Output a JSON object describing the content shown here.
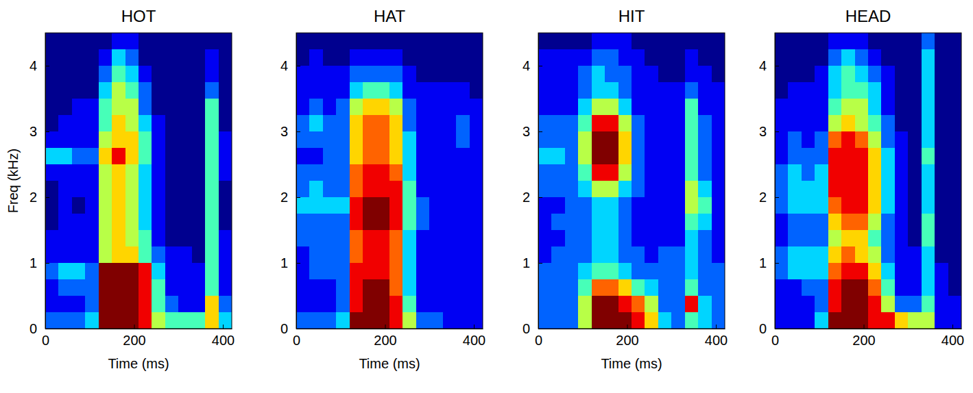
{
  "chart_data": [
    {
      "type": "heatmap",
      "title": "HOT",
      "x_label": "Time (ms)",
      "y_label": "Freq (kHz)",
      "x": [
        15,
        45,
        75,
        105,
        135,
        165,
        195,
        225,
        255,
        285,
        315,
        345,
        375,
        405
      ],
      "y": [
        0.125,
        0.375,
        0.625,
        0.875,
        1.125,
        1.375,
        1.625,
        1.875,
        2.125,
        2.375,
        2.625,
        2.875,
        3.125,
        3.375,
        3.625,
        3.875,
        4.125,
        4.375
      ],
      "z": [
        [
          2,
          2,
          2,
          3,
          9,
          9,
          9,
          8,
          5,
          4,
          4,
          4,
          6,
          3
        ],
        [
          1,
          1,
          1,
          2,
          9,
          9,
          9,
          8,
          4,
          2,
          1,
          1,
          6,
          2
        ],
        [
          1,
          2,
          2,
          2,
          9,
          9,
          9,
          8,
          4,
          1,
          1,
          1,
          4,
          1
        ],
        [
          2,
          3,
          3,
          2,
          9,
          9,
          9,
          8,
          3,
          1,
          1,
          1,
          4,
          1
        ],
        [
          1,
          1,
          1,
          1,
          5,
          6,
          6,
          4,
          2,
          1,
          1,
          0,
          4,
          1
        ],
        [
          1,
          1,
          1,
          1,
          5,
          6,
          5,
          4,
          1,
          0,
          0,
          0,
          4,
          1
        ],
        [
          0,
          1,
          1,
          1,
          5,
          6,
          5,
          3,
          1,
          0,
          0,
          0,
          4,
          0
        ],
        [
          0,
          1,
          0,
          1,
          5,
          6,
          5,
          3,
          1,
          0,
          0,
          0,
          4,
          0
        ],
        [
          0,
          1,
          1,
          1,
          5,
          6,
          5,
          3,
          1,
          0,
          0,
          0,
          4,
          0
        ],
        [
          1,
          1,
          1,
          1,
          5,
          6,
          5,
          3,
          1,
          0,
          0,
          0,
          4,
          1
        ],
        [
          3,
          3,
          2,
          2,
          6,
          8,
          6,
          4,
          1,
          0,
          0,
          0,
          4,
          1
        ],
        [
          1,
          1,
          1,
          1,
          5,
          6,
          6,
          4,
          1,
          0,
          0,
          0,
          4,
          1
        ],
        [
          0,
          1,
          1,
          1,
          4,
          6,
          5,
          3,
          1,
          0,
          0,
          0,
          4,
          0
        ],
        [
          0,
          0,
          1,
          1,
          4,
          5,
          5,
          2,
          0,
          0,
          0,
          0,
          4,
          0
        ],
        [
          0,
          0,
          0,
          0,
          3,
          5,
          4,
          2,
          0,
          0,
          0,
          0,
          2,
          0
        ],
        [
          0,
          0,
          0,
          0,
          2,
          4,
          3,
          1,
          0,
          0,
          0,
          0,
          1,
          0
        ],
        [
          0,
          0,
          0,
          0,
          1,
          3,
          2,
          0,
          0,
          0,
          0,
          0,
          1,
          0
        ],
        [
          0,
          0,
          0,
          0,
          0,
          1,
          1,
          0,
          0,
          0,
          0,
          0,
          0,
          0
        ]
      ],
      "zlim": [
        0,
        9
      ],
      "xlim": [
        0,
        420
      ],
      "xticks": [
        0,
        200,
        400
      ],
      "ylim": [
        0,
        4.5
      ],
      "yticks": [
        0,
        1,
        2,
        3,
        4
      ]
    },
    {
      "type": "heatmap",
      "title": "HAT",
      "x_label": "Time (ms)",
      "x": [
        15,
        45,
        75,
        105,
        135,
        165,
        195,
        225,
        255,
        285,
        315,
        345,
        375,
        405
      ],
      "y": [
        0.125,
        0.375,
        0.625,
        0.875,
        1.125,
        1.375,
        1.625,
        1.875,
        2.125,
        2.375,
        2.625,
        2.875,
        3.125,
        3.375,
        3.625,
        3.875,
        4.125,
        4.375
      ],
      "z": [
        [
          2,
          2,
          2,
          3,
          9,
          9,
          9,
          8,
          5,
          2,
          2,
          1,
          1,
          1
        ],
        [
          1,
          1,
          1,
          2,
          8,
          9,
          9,
          8,
          4,
          1,
          1,
          1,
          1,
          1
        ],
        [
          1,
          1,
          1,
          2,
          8,
          9,
          9,
          7,
          3,
          1,
          1,
          1,
          1,
          1
        ],
        [
          1,
          2,
          2,
          2,
          8,
          8,
          8,
          7,
          3,
          1,
          1,
          1,
          1,
          1
        ],
        [
          1,
          2,
          2,
          2,
          7,
          8,
          8,
          7,
          3,
          1,
          1,
          1,
          1,
          1
        ],
        [
          2,
          2,
          2,
          2,
          7,
          8,
          8,
          7,
          3,
          1,
          1,
          1,
          1,
          1
        ],
        [
          2,
          2,
          2,
          2,
          8,
          9,
          9,
          8,
          4,
          2,
          1,
          1,
          1,
          1
        ],
        [
          3,
          3,
          3,
          3,
          8,
          9,
          9,
          8,
          4,
          2,
          1,
          1,
          1,
          1
        ],
        [
          2,
          3,
          2,
          2,
          7,
          8,
          8,
          8,
          4,
          1,
          1,
          1,
          1,
          1
        ],
        [
          2,
          2,
          2,
          2,
          7,
          8,
          8,
          7,
          3,
          1,
          1,
          1,
          1,
          1
        ],
        [
          1,
          1,
          2,
          2,
          6,
          7,
          7,
          6,
          3,
          1,
          1,
          1,
          1,
          1
        ],
        [
          2,
          2,
          2,
          2,
          6,
          7,
          7,
          6,
          3,
          1,
          1,
          1,
          2,
          1
        ],
        [
          2,
          3,
          2,
          2,
          6,
          7,
          7,
          6,
          2,
          1,
          1,
          1,
          2,
          1
        ],
        [
          1,
          2,
          1,
          2,
          5,
          6,
          6,
          5,
          2,
          1,
          1,
          1,
          1,
          1
        ],
        [
          1,
          1,
          1,
          1,
          3,
          4,
          4,
          3,
          1,
          1,
          1,
          1,
          1,
          0
        ],
        [
          1,
          1,
          1,
          1,
          2,
          2,
          2,
          2,
          1,
          0,
          0,
          0,
          0,
          0
        ],
        [
          0,
          1,
          0,
          0,
          1,
          1,
          1,
          1,
          0,
          0,
          0,
          0,
          0,
          0
        ],
        [
          0,
          0,
          0,
          0,
          0,
          0,
          0,
          0,
          0,
          0,
          0,
          0,
          0,
          0
        ]
      ],
      "zlim": [
        0,
        9
      ],
      "xlim": [
        0,
        420
      ],
      "xticks": [
        0,
        200,
        400
      ],
      "ylim": [
        0,
        4.5
      ],
      "yticks": [
        0,
        1,
        2,
        3,
        4
      ]
    },
    {
      "type": "heatmap",
      "title": "HIT",
      "x_label": "Time (ms)",
      "x": [
        15,
        45,
        75,
        105,
        135,
        165,
        195,
        225,
        255,
        285,
        315,
        345,
        375,
        405
      ],
      "y": [
        0.125,
        0.375,
        0.625,
        0.875,
        1.125,
        1.375,
        1.625,
        1.875,
        2.125,
        2.375,
        2.625,
        2.875,
        3.125,
        3.375,
        3.625,
        3.875,
        4.125,
        4.375
      ],
      "z": [
        [
          2,
          2,
          2,
          5,
          9,
          9,
          9,
          8,
          6,
          3,
          2,
          4,
          3,
          2
        ],
        [
          2,
          2,
          2,
          5,
          9,
          9,
          8,
          7,
          5,
          2,
          2,
          8,
          3,
          2
        ],
        [
          2,
          2,
          2,
          4,
          7,
          7,
          6,
          4,
          3,
          2,
          2,
          4,
          2,
          2
        ],
        [
          2,
          2,
          2,
          3,
          4,
          4,
          3,
          2,
          2,
          2,
          2,
          3,
          2,
          2
        ],
        [
          1,
          2,
          2,
          2,
          3,
          3,
          2,
          2,
          1,
          2,
          2,
          3,
          2,
          1
        ],
        [
          1,
          1,
          2,
          2,
          3,
          3,
          2,
          1,
          1,
          1,
          1,
          3,
          2,
          1
        ],
        [
          1,
          2,
          2,
          2,
          3,
          3,
          2,
          1,
          1,
          1,
          1,
          4,
          3,
          1
        ],
        [
          1,
          1,
          2,
          2,
          3,
          3,
          2,
          1,
          1,
          1,
          1,
          5,
          4,
          1
        ],
        [
          2,
          2,
          2,
          3,
          5,
          5,
          3,
          2,
          1,
          1,
          1,
          5,
          3,
          1
        ],
        [
          2,
          2,
          2,
          4,
          8,
          8,
          5,
          2,
          1,
          1,
          1,
          4,
          2,
          1
        ],
        [
          3,
          3,
          2,
          5,
          9,
          9,
          6,
          2,
          1,
          1,
          1,
          4,
          2,
          1
        ],
        [
          2,
          2,
          2,
          5,
          9,
          9,
          6,
          2,
          1,
          1,
          1,
          4,
          2,
          1
        ],
        [
          2,
          2,
          2,
          4,
          8,
          8,
          5,
          2,
          1,
          1,
          1,
          4,
          2,
          1
        ],
        [
          1,
          1,
          1,
          3,
          5,
          5,
          3,
          1,
          1,
          1,
          1,
          4,
          1,
          1
        ],
        [
          1,
          1,
          1,
          2,
          3,
          3,
          2,
          1,
          1,
          1,
          1,
          2,
          1,
          1
        ],
        [
          1,
          1,
          1,
          2,
          3,
          2,
          2,
          1,
          1,
          0,
          0,
          1,
          1,
          0
        ],
        [
          1,
          1,
          1,
          1,
          2,
          2,
          1,
          1,
          0,
          0,
          0,
          1,
          0,
          0
        ],
        [
          0,
          0,
          0,
          0,
          1,
          1,
          1,
          0,
          0,
          0,
          0,
          0,
          0,
          0
        ]
      ],
      "zlim": [
        0,
        9
      ],
      "xlim": [
        0,
        420
      ],
      "xticks": [
        0,
        200,
        400
      ],
      "ylim": [
        0,
        4.5
      ],
      "yticks": [
        0,
        1,
        2,
        3,
        4
      ]
    },
    {
      "type": "heatmap",
      "title": "HEAD",
      "x": [
        15,
        45,
        75,
        105,
        135,
        165,
        195,
        225,
        255,
        285,
        315,
        345,
        375,
        405
      ],
      "y": [
        0.125,
        0.375,
        0.625,
        0.875,
        1.125,
        1.375,
        1.625,
        1.875,
        2.125,
        2.375,
        2.625,
        2.875,
        3.125,
        3.375,
        3.625,
        3.875,
        4.125,
        4.375
      ],
      "z": [
        [
          1,
          1,
          1,
          3,
          9,
          9,
          9,
          8,
          8,
          6,
          5,
          5,
          1,
          1
        ],
        [
          1,
          1,
          1,
          2,
          8,
          9,
          9,
          8,
          5,
          2,
          2,
          4,
          1,
          1
        ],
        [
          1,
          1,
          2,
          2,
          8,
          9,
          9,
          7,
          4,
          1,
          1,
          3,
          1,
          0
        ],
        [
          2,
          3,
          3,
          3,
          7,
          8,
          8,
          6,
          3,
          1,
          1,
          3,
          1,
          0
        ],
        [
          2,
          3,
          3,
          3,
          6,
          7,
          6,
          5,
          2,
          1,
          1,
          3,
          0,
          0
        ],
        [
          1,
          2,
          2,
          2,
          5,
          6,
          6,
          4,
          2,
          1,
          0,
          4,
          0,
          0
        ],
        [
          1,
          2,
          2,
          2,
          6,
          7,
          7,
          5,
          2,
          1,
          0,
          4,
          0,
          0
        ],
        [
          2,
          3,
          3,
          3,
          7,
          8,
          8,
          6,
          3,
          1,
          0,
          3,
          0,
          0
        ],
        [
          2,
          3,
          3,
          3,
          8,
          8,
          8,
          6,
          3,
          1,
          0,
          3,
          0,
          0
        ],
        [
          2,
          3,
          2,
          3,
          8,
          8,
          8,
          6,
          3,
          1,
          0,
          3,
          0,
          0
        ],
        [
          1,
          2,
          2,
          2,
          8,
          8,
          8,
          6,
          3,
          1,
          0,
          4,
          0,
          0
        ],
        [
          1,
          2,
          1,
          2,
          7,
          8,
          7,
          5,
          2,
          1,
          0,
          3,
          0,
          0
        ],
        [
          1,
          1,
          1,
          1,
          5,
          6,
          5,
          4,
          2,
          0,
          0,
          3,
          0,
          0
        ],
        [
          1,
          1,
          1,
          1,
          4,
          5,
          5,
          3,
          1,
          0,
          0,
          3,
          0,
          0
        ],
        [
          0,
          1,
          1,
          1,
          3,
          4,
          4,
          3,
          1,
          0,
          0,
          3,
          0,
          0
        ],
        [
          0,
          0,
          0,
          1,
          3,
          4,
          3,
          2,
          1,
          0,
          0,
          3,
          0,
          0
        ],
        [
          0,
          0,
          0,
          0,
          2,
          3,
          2,
          1,
          0,
          0,
          0,
          3,
          0,
          0
        ],
        [
          0,
          0,
          0,
          0,
          1,
          1,
          1,
          0,
          0,
          0,
          0,
          2,
          0,
          0
        ]
      ],
      "zlim": [
        0,
        9
      ],
      "xlim": [
        0,
        420
      ],
      "xticks": [
        0,
        200,
        400
      ],
      "ylim": [
        0,
        4.5
      ],
      "yticks": [
        0,
        1,
        2,
        3,
        4
      ]
    }
  ]
}
